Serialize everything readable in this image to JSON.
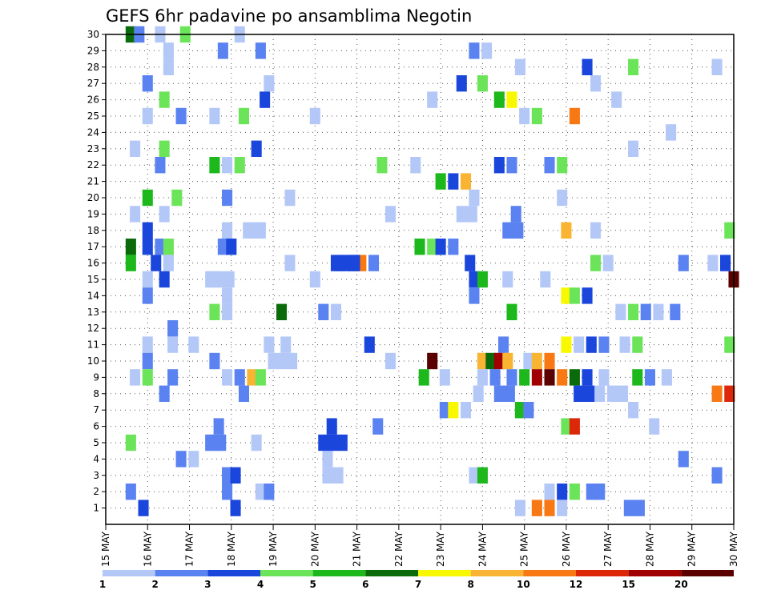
{
  "chart_data": {
    "type": "heatmap",
    "title": "GEFS 6hr padavine po ansamblima Negotin",
    "x_ticks": [
      "15 MAY",
      "16 MAY",
      "17 MAY",
      "18 MAY",
      "19 MAY",
      "20 MAY",
      "21 MAY",
      "22 MAY",
      "23 MAY",
      "24 MAY",
      "25 MAY",
      "26 MAY",
      "27 MAY",
      "28 MAY",
      "29 MAY",
      "30 MAY"
    ],
    "y_ticks": [
      "1",
      "2",
      "3",
      "4",
      "5",
      "6",
      "7",
      "8",
      "9",
      "10",
      "11",
      "12",
      "13",
      "14",
      "15",
      "16",
      "17",
      "18",
      "19",
      "20",
      "21",
      "22",
      "23",
      "24",
      "25",
      "26",
      "27",
      "28",
      "29",
      "30"
    ],
    "xlim": [
      "15 MAY",
      "30 MAY"
    ],
    "ylim": [
      0,
      30
    ],
    "grid": true,
    "colorbar": {
      "labels": [
        "1",
        "2",
        "3",
        "4",
        "5",
        "6",
        "7",
        "8",
        "10",
        "12",
        "15",
        "20"
      ],
      "colors": [
        "#b4c8f8",
        "#5a82f0",
        "#1a46dc",
        "#6ce45a",
        "#1cb81c",
        "#0b6b0b",
        "#f8f800",
        "#f8b432",
        "#f87814",
        "#dc2808",
        "#a00000",
        "#5a0000"
      ]
    },
    "cells": [
      {
        "day": 0.6,
        "member": 30,
        "level": 6
      },
      {
        "day": 0.8,
        "member": 30,
        "level": 2
      },
      {
        "day": 1.3,
        "member": 30,
        "level": 1
      },
      {
        "day": 1.9,
        "member": 30,
        "level": 4
      },
      {
        "day": 3.2,
        "member": 30,
        "level": 1
      },
      {
        "day": 1.5,
        "member": 29,
        "level": 1
      },
      {
        "day": 2.8,
        "member": 29,
        "level": 2
      },
      {
        "day": 3.7,
        "member": 29,
        "level": 2
      },
      {
        "day": 8.8,
        "member": 29,
        "level": 2
      },
      {
        "day": 9.1,
        "member": 29,
        "level": 1
      },
      {
        "day": 1.5,
        "member": 28,
        "level": 1
      },
      {
        "day": 9.9,
        "member": 28,
        "level": 1
      },
      {
        "day": 11.5,
        "member": 28,
        "level": 3
      },
      {
        "day": 12.6,
        "member": 28,
        "level": 4
      },
      {
        "day": 14.6,
        "member": 28,
        "level": 1
      },
      {
        "day": 1.0,
        "member": 27,
        "level": 2
      },
      {
        "day": 3.9,
        "member": 27,
        "level": 1
      },
      {
        "day": 8.5,
        "member": 27,
        "level": 3
      },
      {
        "day": 9.0,
        "member": 27,
        "level": 4
      },
      {
        "day": 11.7,
        "member": 27,
        "level": 1
      },
      {
        "day": 1.4,
        "member": 26,
        "level": 4
      },
      {
        "day": 3.8,
        "member": 26,
        "level": 3
      },
      {
        "day": 7.8,
        "member": 26,
        "level": 1
      },
      {
        "day": 9.4,
        "member": 26,
        "level": 5
      },
      {
        "day": 9.7,
        "member": 26,
        "level": 7
      },
      {
        "day": 12.2,
        "member": 26,
        "level": 1
      },
      {
        "day": 1.0,
        "member": 25,
        "level": 1
      },
      {
        "day": 1.8,
        "member": 25,
        "level": 2
      },
      {
        "day": 2.6,
        "member": 25,
        "level": 1
      },
      {
        "day": 3.3,
        "member": 25,
        "level": 4
      },
      {
        "day": 5.0,
        "member": 25,
        "level": 1
      },
      {
        "day": 10.0,
        "member": 25,
        "level": 1
      },
      {
        "day": 10.3,
        "member": 25,
        "level": 4
      },
      {
        "day": 11.2,
        "member": 25,
        "level": 9
      },
      {
        "day": 13.5,
        "member": 24,
        "level": 1
      },
      {
        "day": 0.7,
        "member": 23,
        "level": 1
      },
      {
        "day": 1.4,
        "member": 23,
        "level": 4
      },
      {
        "day": 3.6,
        "member": 23,
        "level": 3
      },
      {
        "day": 12.6,
        "member": 23,
        "level": 1
      },
      {
        "day": 2.6,
        "member": 22,
        "level": 5
      },
      {
        "day": 2.9,
        "member": 22,
        "level": 1
      },
      {
        "day": 3.2,
        "member": 22,
        "level": 4
      },
      {
        "day": 6.6,
        "member": 22,
        "level": 4
      },
      {
        "day": 7.4,
        "member": 22,
        "level": 1
      },
      {
        "day": 9.4,
        "member": 22,
        "level": 3
      },
      {
        "day": 9.7,
        "member": 22,
        "level": 2
      },
      {
        "day": 10.6,
        "member": 22,
        "level": 2
      },
      {
        "day": 10.9,
        "member": 22,
        "level": 4
      },
      {
        "day": 8.0,
        "member": 21,
        "level": 5
      },
      {
        "day": 8.3,
        "member": 21,
        "level": 3
      },
      {
        "day": 8.6,
        "member": 21,
        "level": 8
      },
      {
        "day": 1.0,
        "member": 20,
        "level": 5
      },
      {
        "day": 1.7,
        "member": 20,
        "level": 4
      },
      {
        "day": 2.9,
        "member": 20,
        "level": 2
      },
      {
        "day": 4.4,
        "member": 20,
        "level": 1
      },
      {
        "day": 8.8,
        "member": 20,
        "level": 1
      },
      {
        "day": 10.9,
        "member": 20,
        "level": 1
      },
      {
        "day": 0.7,
        "member": 19,
        "level": 1
      },
      {
        "day": 1.4,
        "member": 19,
        "level": 1
      },
      {
        "day": 6.8,
        "member": 19,
        "level": 1
      },
      {
        "day": 9.8,
        "member": 19,
        "level": 2
      },
      {
        "day": 1.0,
        "member": 18,
        "level": 3
      },
      {
        "day": 2.9,
        "member": 18,
        "level": 1
      },
      {
        "day": 3.7,
        "member": 18,
        "level": 1
      },
      {
        "day": 11.0,
        "member": 18,
        "level": 8
      },
      {
        "day": 11.7,
        "member": 18,
        "level": 1
      },
      {
        "day": 14.9,
        "member": 18,
        "level": 4
      },
      {
        "day": 0.6,
        "member": 17,
        "level": 6
      },
      {
        "day": 1.0,
        "member": 17,
        "level": 3
      },
      {
        "day": 1.3,
        "member": 17,
        "level": 2
      },
      {
        "day": 1.5,
        "member": 17,
        "level": 4
      },
      {
        "day": 2.8,
        "member": 17,
        "level": 2
      },
      {
        "day": 3.0,
        "member": 17,
        "level": 3
      },
      {
        "day": 7.5,
        "member": 17,
        "level": 5
      },
      {
        "day": 7.8,
        "member": 17,
        "level": 4
      },
      {
        "day": 8.0,
        "member": 17,
        "level": 3
      },
      {
        "day": 8.3,
        "member": 17,
        "level": 2
      },
      {
        "day": 0.6,
        "member": 16,
        "level": 5
      },
      {
        "day": 1.2,
        "member": 16,
        "level": 3
      },
      {
        "day": 1.5,
        "member": 16,
        "level": 1
      },
      {
        "day": 4.4,
        "member": 16,
        "level": 1
      },
      {
        "day": 5.6,
        "member": 16,
        "level": 2
      },
      {
        "day": 5.9,
        "member": 16,
        "level": 3
      },
      {
        "day": 6.1,
        "member": 16,
        "level": 9
      },
      {
        "day": 6.4,
        "member": 16,
        "level": 2
      },
      {
        "day": 8.7,
        "member": 16,
        "level": 3
      },
      {
        "day": 11.7,
        "member": 16,
        "level": 4
      },
      {
        "day": 12.0,
        "member": 16,
        "level": 1
      },
      {
        "day": 13.8,
        "member": 16,
        "level": 2
      },
      {
        "day": 14.5,
        "member": 16,
        "level": 1
      },
      {
        "day": 14.8,
        "member": 16,
        "level": 3
      },
      {
        "day": 1.0,
        "member": 15,
        "level": 1
      },
      {
        "day": 1.4,
        "member": 15,
        "level": 3
      },
      {
        "day": 2.6,
        "member": 15,
        "level": 1
      },
      {
        "day": 5.0,
        "member": 15,
        "level": 1
      },
      {
        "day": 8.8,
        "member": 15,
        "level": 3
      },
      {
        "day": 9.0,
        "member": 15,
        "level": 5
      },
      {
        "day": 9.6,
        "member": 15,
        "level": 1
      },
      {
        "day": 10.5,
        "member": 15,
        "level": 1
      },
      {
        "day": 15.0,
        "member": 15,
        "level": 12
      },
      {
        "day": 1.0,
        "member": 14,
        "level": 2
      },
      {
        "day": 2.9,
        "member": 14,
        "level": 1
      },
      {
        "day": 8.8,
        "member": 14,
        "level": 2
      },
      {
        "day": 11.0,
        "member": 14,
        "level": 7
      },
      {
        "day": 11.2,
        "member": 14,
        "level": 4
      },
      {
        "day": 11.5,
        "member": 14,
        "level": 3
      },
      {
        "day": 4.2,
        "member": 13,
        "level": 6
      },
      {
        "day": 2.6,
        "member": 13,
        "level": 4
      },
      {
        "day": 2.9,
        "member": 13,
        "level": 1
      },
      {
        "day": 5.2,
        "member": 13,
        "level": 2
      },
      {
        "day": 5.5,
        "member": 13,
        "level": 1
      },
      {
        "day": 9.7,
        "member": 13,
        "level": 5
      },
      {
        "day": 12.3,
        "member": 13,
        "level": 1
      },
      {
        "day": 12.6,
        "member": 13,
        "level": 4
      },
      {
        "day": 12.9,
        "member": 13,
        "level": 2
      },
      {
        "day": 13.2,
        "member": 13,
        "level": 1
      },
      {
        "day": 13.6,
        "member": 13,
        "level": 2
      },
      {
        "day": 1.6,
        "member": 12,
        "level": 2
      },
      {
        "day": 1.0,
        "member": 11,
        "level": 1
      },
      {
        "day": 1.6,
        "member": 11,
        "level": 1
      },
      {
        "day": 2.1,
        "member": 11,
        "level": 1
      },
      {
        "day": 3.9,
        "member": 11,
        "level": 1
      },
      {
        "day": 4.3,
        "member": 11,
        "level": 1
      },
      {
        "day": 6.3,
        "member": 11,
        "level": 3
      },
      {
        "day": 9.5,
        "member": 11,
        "level": 2
      },
      {
        "day": 11.0,
        "member": 11,
        "level": 7
      },
      {
        "day": 11.3,
        "member": 11,
        "level": 1
      },
      {
        "day": 11.6,
        "member": 11,
        "level": 3
      },
      {
        "day": 11.9,
        "member": 11,
        "level": 2
      },
      {
        "day": 12.4,
        "member": 11,
        "level": 1
      },
      {
        "day": 12.7,
        "member": 11,
        "level": 4
      },
      {
        "day": 14.9,
        "member": 11,
        "level": 4
      },
      {
        "day": 1.0,
        "member": 10,
        "level": 2
      },
      {
        "day": 2.6,
        "member": 10,
        "level": 2
      },
      {
        "day": 6.8,
        "member": 10,
        "level": 1
      },
      {
        "day": 7.8,
        "member": 10,
        "level": 12
      },
      {
        "day": 9.0,
        "member": 10,
        "level": 8
      },
      {
        "day": 9.2,
        "member": 10,
        "level": 6
      },
      {
        "day": 9.4,
        "member": 10,
        "level": 11
      },
      {
        "day": 9.6,
        "member": 10,
        "level": 8
      },
      {
        "day": 10.1,
        "member": 10,
        "level": 1
      },
      {
        "day": 10.3,
        "member": 10,
        "level": 8
      },
      {
        "day": 10.6,
        "member": 10,
        "level": 9
      },
      {
        "day": 0.7,
        "member": 9,
        "level": 1
      },
      {
        "day": 1.0,
        "member": 9,
        "level": 4
      },
      {
        "day": 1.6,
        "member": 9,
        "level": 2
      },
      {
        "day": 2.9,
        "member": 9,
        "level": 1
      },
      {
        "day": 3.2,
        "member": 9,
        "level": 2
      },
      {
        "day": 3.5,
        "member": 9,
        "level": 8
      },
      {
        "day": 3.7,
        "member": 9,
        "level": 4
      },
      {
        "day": 7.6,
        "member": 9,
        "level": 5
      },
      {
        "day": 8.1,
        "member": 9,
        "level": 1
      },
      {
        "day": 9.0,
        "member": 9,
        "level": 1
      },
      {
        "day": 9.3,
        "member": 9,
        "level": 2
      },
      {
        "day": 9.7,
        "member": 9,
        "level": 2
      },
      {
        "day": 10.0,
        "member": 9,
        "level": 5
      },
      {
        "day": 10.3,
        "member": 9,
        "level": 11
      },
      {
        "day": 10.6,
        "member": 9,
        "level": 12
      },
      {
        "day": 10.9,
        "member": 9,
        "level": 9
      },
      {
        "day": 11.2,
        "member": 9,
        "level": 6
      },
      {
        "day": 11.5,
        "member": 9,
        "level": 3
      },
      {
        "day": 11.9,
        "member": 9,
        "level": 1
      },
      {
        "day": 12.7,
        "member": 9,
        "level": 5
      },
      {
        "day": 13.0,
        "member": 9,
        "level": 2
      },
      {
        "day": 13.4,
        "member": 9,
        "level": 1
      },
      {
        "day": 1.4,
        "member": 8,
        "level": 2
      },
      {
        "day": 3.3,
        "member": 8,
        "level": 2
      },
      {
        "day": 8.9,
        "member": 8,
        "level": 1
      },
      {
        "day": 11.8,
        "member": 8,
        "level": 1
      },
      {
        "day": 14.6,
        "member": 8,
        "level": 9
      },
      {
        "day": 14.9,
        "member": 8,
        "level": 10
      },
      {
        "day": 8.1,
        "member": 7,
        "level": 2
      },
      {
        "day": 8.3,
        "member": 7,
        "level": 7
      },
      {
        "day": 8.6,
        "member": 7,
        "level": 1
      },
      {
        "day": 9.9,
        "member": 7,
        "level": 5
      },
      {
        "day": 10.1,
        "member": 7,
        "level": 2
      },
      {
        "day": 12.6,
        "member": 7,
        "level": 1
      },
      {
        "day": 2.7,
        "member": 6,
        "level": 2
      },
      {
        "day": 5.4,
        "member": 6,
        "level": 3
      },
      {
        "day": 6.5,
        "member": 6,
        "level": 2
      },
      {
        "day": 11.0,
        "member": 6,
        "level": 4
      },
      {
        "day": 11.2,
        "member": 6,
        "level": 10
      },
      {
        "day": 13.1,
        "member": 6,
        "level": 1
      },
      {
        "day": 0.6,
        "member": 5,
        "level": 4
      },
      {
        "day": 2.6,
        "member": 5,
        "level": 1
      },
      {
        "day": 3.6,
        "member": 5,
        "level": 1
      },
      {
        "day": 1.8,
        "member": 4,
        "level": 2
      },
      {
        "day": 2.1,
        "member": 4,
        "level": 1
      },
      {
        "day": 5.3,
        "member": 4,
        "level": 1
      },
      {
        "day": 13.8,
        "member": 4,
        "level": 2
      },
      {
        "day": 2.9,
        "member": 3,
        "level": 2
      },
      {
        "day": 3.1,
        "member": 3,
        "level": 3
      },
      {
        "day": 8.8,
        "member": 3,
        "level": 1
      },
      {
        "day": 9.0,
        "member": 3,
        "level": 5
      },
      {
        "day": 14.6,
        "member": 3,
        "level": 2
      },
      {
        "day": 0.6,
        "member": 2,
        "level": 2
      },
      {
        "day": 2.9,
        "member": 2,
        "level": 2
      },
      {
        "day": 3.7,
        "member": 2,
        "level": 1
      },
      {
        "day": 3.9,
        "member": 2,
        "level": 2
      },
      {
        "day": 10.6,
        "member": 2,
        "level": 1
      },
      {
        "day": 10.9,
        "member": 2,
        "level": 3
      },
      {
        "day": 11.2,
        "member": 2,
        "level": 4
      },
      {
        "day": 11.6,
        "member": 2,
        "level": 2
      },
      {
        "day": 11.8,
        "member": 2,
        "level": 2
      },
      {
        "day": 0.9,
        "member": 1,
        "level": 3
      },
      {
        "day": 3.1,
        "member": 1,
        "level": 3
      },
      {
        "day": 9.9,
        "member": 1,
        "level": 1
      },
      {
        "day": 10.3,
        "member": 1,
        "level": 9
      },
      {
        "day": 10.6,
        "member": 1,
        "level": 9
      },
      {
        "day": 10.9,
        "member": 1,
        "level": 1
      }
    ],
    "wide_cells": [
      {
        "day": 4.0,
        "member": 10,
        "span": 0.7,
        "level": 1
      },
      {
        "day": 5.2,
        "member": 5,
        "span": 0.7,
        "level": 3
      },
      {
        "day": 5.3,
        "member": 3,
        "span": 0.5,
        "level": 1
      },
      {
        "day": 5.5,
        "member": 16,
        "span": 0.7,
        "level": 3
      },
      {
        "day": 2.5,
        "member": 5,
        "span": 0.5,
        "level": 2
      },
      {
        "day": 2.5,
        "member": 15,
        "span": 0.7,
        "level": 1
      },
      {
        "day": 3.4,
        "member": 18,
        "span": 0.5,
        "level": 1
      },
      {
        "day": 1.3,
        "member": 22,
        "span": 0.0,
        "level": 2
      },
      {
        "day": 9.4,
        "member": 8,
        "span": 0.5,
        "level": 2
      },
      {
        "day": 11.3,
        "member": 8,
        "span": 0.5,
        "level": 3
      },
      {
        "day": 12.1,
        "member": 8,
        "span": 0.5,
        "level": 1
      },
      {
        "day": 12.5,
        "member": 1,
        "span": 0.5,
        "level": 2
      },
      {
        "day": 8.5,
        "member": 19,
        "span": 0.5,
        "level": 1
      },
      {
        "day": 9.6,
        "member": 18,
        "span": 0.5,
        "level": 2
      }
    ]
  }
}
